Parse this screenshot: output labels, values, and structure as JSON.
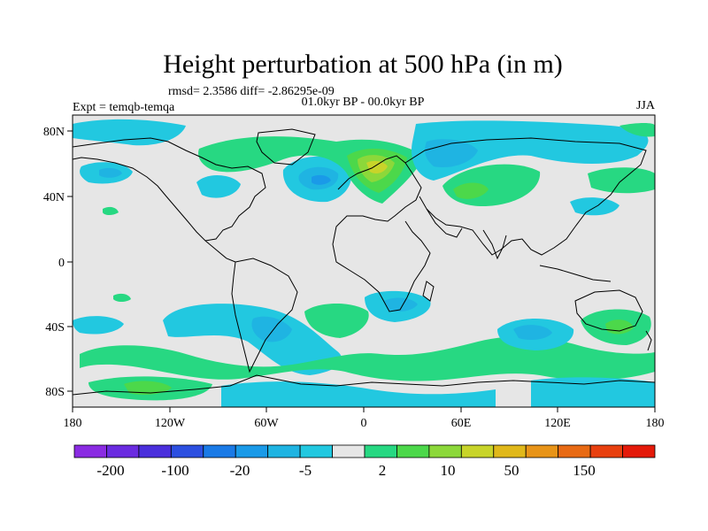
{
  "title": "Height perturbation at 500 hPa (in m)",
  "stats": "rmsd= 2.3586 diff= -2.86295e-09",
  "period": "01.0kyr BP - 00.0kyr BP",
  "experiment": "Expt = temqb-temqa",
  "season": "JJA",
  "lat_ticks": [
    "80N",
    "40N",
    "0",
    "40S",
    "80S"
  ],
  "lon_ticks": [
    "180",
    "120W",
    "60W",
    "0",
    "60E",
    "120E",
    "180"
  ],
  "colorbar": {
    "labels": [
      "-200",
      "-100",
      "-20",
      "-5",
      "2",
      "10",
      "50",
      "150"
    ],
    "colors": [
      "#8a2be2",
      "#6a2be0",
      "#4a2fdc",
      "#2c4fe0",
      "#1a7ae6",
      "#1a9ae8",
      "#1fb4e2",
      "#22c8e0",
      "#e6e6e6",
      "#27d882",
      "#4cd84a",
      "#8cd83a",
      "#c8d42a",
      "#e0b81a",
      "#e89418",
      "#e86a14",
      "#e8400f",
      "#e41a0a"
    ]
  },
  "map_colors": {
    "land_background": "#e6e6e6",
    "coast": "#000000",
    "neg_weak": "#22c8e0",
    "neg_mod": "#1fb4e2",
    "neg_strong": "#1a9ae8",
    "pos_weak": "#27d882",
    "pos_mod": "#4cd84a",
    "pos_strong": "#8cd83a",
    "pos_peak": "#c8d42a"
  }
}
